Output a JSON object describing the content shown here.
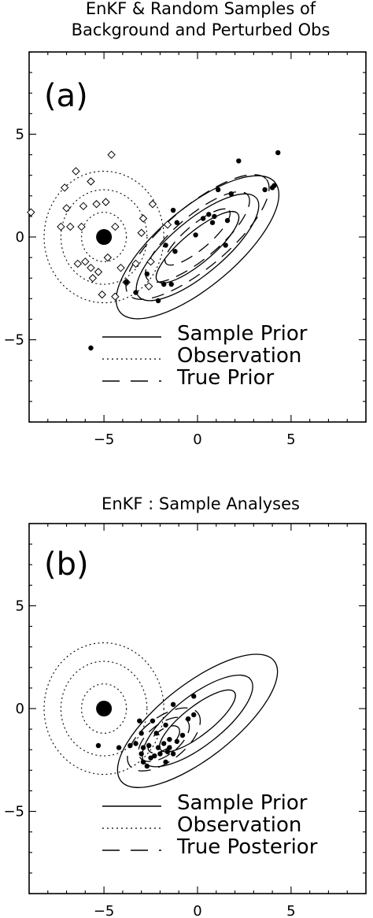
{
  "chart_data": [
    {
      "type": "scatter",
      "title_lines": [
        "EnKF & Random Samples of",
        "Background and Perturbed Obs"
      ],
      "panel_label": "(a)",
      "xlim": [
        -9,
        9
      ],
      "ylim": [
        -9,
        9
      ],
      "xticks": [
        -5,
        0,
        5
      ],
      "yticks": [
        5,
        0,
        -5
      ],
      "legend": [
        "Sample Prior",
        "Observation",
        "True Prior"
      ],
      "observation_mean": [
        -5,
        0
      ],
      "observation_radii": [
        1.2,
        2.3,
        3.2
      ],
      "sample_prior_ellipses": {
        "center": [
          0,
          -0.5
        ],
        "angle_deg": 40,
        "semi_axes": [
          [
            2.8,
            0.75
          ],
          [
            4.1,
            1.3
          ],
          [
            5.4,
            1.9
          ]
        ]
      },
      "true_prior_ellipses": {
        "center": [
          0,
          0
        ],
        "angle_deg": 40,
        "semi_axes": [
          [
            2.2,
            0.6
          ],
          [
            3.5,
            1.05
          ],
          [
            4.8,
            1.5
          ]
        ]
      },
      "prior_samples": [
        [
          4.3,
          4.1
        ],
        [
          2.2,
          3.7
        ],
        [
          4.1,
          2.5
        ],
        [
          4.0,
          2.4
        ],
        [
          3.6,
          2.3
        ],
        [
          1.8,
          2.1
        ],
        [
          1.1,
          2.3
        ],
        [
          -1.1,
          0.7
        ],
        [
          -1.3,
          1.3
        ],
        [
          0.6,
          1.1
        ],
        [
          0.9,
          1.0
        ],
        [
          0.3,
          0.9
        ],
        [
          1.6,
          0.8
        ],
        [
          0.8,
          0.7
        ],
        [
          -0.1,
          0.1
        ],
        [
          1.5,
          -0.4
        ],
        [
          -1.7,
          -0.4
        ],
        [
          -1.8,
          -2.3
        ],
        [
          -1.4,
          -2.3
        ],
        [
          -3.3,
          -2.7
        ],
        [
          -2.7,
          -1.8
        ],
        [
          -2.1,
          -3.1
        ],
        [
          -3.8,
          -2.2
        ],
        [
          -5.7,
          -5.4
        ],
        [
          -1.2,
          -0.7
        ]
      ],
      "perturbed_obs": [
        [
          -4.6,
          4.0
        ],
        [
          -6.5,
          3.2
        ],
        [
          -5.7,
          2.7
        ],
        [
          -7.1,
          2.4
        ],
        [
          -7.0,
          1.4
        ],
        [
          -5.4,
          1.6
        ],
        [
          -4.9,
          1.7
        ],
        [
          -6.1,
          1.5
        ],
        [
          -8.9,
          1.2
        ],
        [
          -7.3,
          0.5
        ],
        [
          -6.8,
          0.5
        ],
        [
          -6.2,
          0.5
        ],
        [
          -4.4,
          0.5
        ],
        [
          -3.0,
          0.2
        ],
        [
          -2.9,
          0.9
        ],
        [
          -2.4,
          1.6
        ],
        [
          -1.6,
          0.6
        ],
        [
          -6.4,
          -1.3
        ],
        [
          -6.0,
          -1.2
        ],
        [
          -5.7,
          -1.5
        ],
        [
          -4.1,
          -1.5
        ],
        [
          -4.8,
          -1.0
        ],
        [
          -2.5,
          -1.2
        ],
        [
          -3.3,
          -1.3
        ],
        [
          -5.6,
          -2.0
        ],
        [
          -5.3,
          -1.7
        ],
        [
          -5.1,
          -2.8
        ],
        [
          -4.4,
          -2.9
        ],
        [
          -3.8,
          -2.2
        ],
        [
          -2.6,
          -2.4
        ]
      ]
    },
    {
      "type": "scatter",
      "title_lines": [
        "EnKF : Sample Analyses"
      ],
      "panel_label": "(b)",
      "xlim": [
        -9,
        9
      ],
      "ylim": [
        -9,
        9
      ],
      "xticks": [
        -5,
        0,
        5
      ],
      "yticks": [
        5,
        0,
        -5
      ],
      "legend": [
        "Sample Prior",
        "Observation",
        "True Posterior"
      ],
      "observation_mean": [
        -5,
        0
      ],
      "observation_radii": [
        1.2,
        2.3,
        3.2
      ],
      "sample_prior_ellipses": {
        "center": [
          0,
          -0.6
        ],
        "angle_deg": 38,
        "semi_axes": [
          [
            2.5,
            0.7
          ],
          [
            3.6,
            1.2
          ],
          [
            5.2,
            1.8
          ]
        ]
      },
      "true_posterior_ellipses": {
        "center": [
          -1.8,
          -1.5
        ],
        "angle_deg": 38,
        "semi_axes": [
          [
            1.0,
            0.45
          ],
          [
            1.6,
            0.75
          ],
          [
            2.3,
            1.05
          ]
        ]
      },
      "analysis_samples": [
        [
          -0.2,
          0.6
        ],
        [
          -0.2,
          -0.3
        ],
        [
          -1.3,
          0.2
        ],
        [
          -0.5,
          -0.5
        ],
        [
          -3.1,
          -0.6
        ],
        [
          -2.4,
          -0.6
        ],
        [
          -1.7,
          -0.8
        ],
        [
          -3.0,
          -1.2
        ],
        [
          -2.2,
          -1.2
        ],
        [
          -1.5,
          -1.5
        ],
        [
          -1.1,
          -1.6
        ],
        [
          -0.8,
          -1.3
        ],
        [
          -3.6,
          -1.8
        ],
        [
          -3.3,
          -1.7
        ],
        [
          -2.9,
          -1.9
        ],
        [
          -2.6,
          -1.8
        ],
        [
          -2.1,
          -1.9
        ],
        [
          -1.8,
          -1.7
        ],
        [
          -4.2,
          -1.9
        ],
        [
          -5.3,
          -1.8
        ],
        [
          -3.0,
          -2.2
        ],
        [
          -2.5,
          -2.4
        ],
        [
          -2.3,
          -2.3
        ],
        [
          -2.0,
          -2.2
        ],
        [
          -1.7,
          -2.6
        ],
        [
          -2.9,
          -2.6
        ],
        [
          -2.7,
          -2.8
        ],
        [
          -1.3,
          -2.2
        ],
        [
          -1.5,
          -1.9
        ],
        [
          -1.6,
          -2.1
        ]
      ]
    }
  ]
}
